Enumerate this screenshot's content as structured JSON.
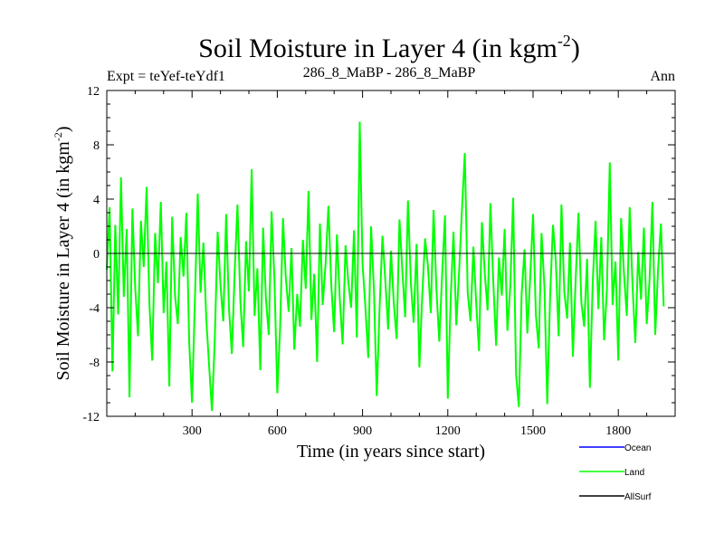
{
  "chart_data": {
    "type": "line",
    "title": "Soil Moisture in Layer 4 (in kgm",
    "title_sup": "-2",
    "title_close": ")",
    "subtitle_left": "Expt = teYef-teYdf1",
    "subtitle_center": "286_8_MaBP - 286_8_MaBP",
    "subtitle_right": "Ann",
    "xlabel": "Time (in years since start)",
    "ylabel": "Soil Moisture in Layer 4 (in kgm",
    "ylabel_sup": "-2",
    "ylabel_close": ")",
    "xlim": [
      0,
      2000
    ],
    "ylim": [
      -12,
      12
    ],
    "x_ticks": [
      300,
      600,
      900,
      1200,
      1500,
      1800
    ],
    "x_tick_labels": [
      "300",
      "600",
      "900",
      "1200",
      "1500",
      "1800"
    ],
    "y_ticks": [
      -12,
      -8,
      -4,
      0,
      4,
      8,
      12
    ],
    "y_tick_labels": [
      "-12",
      "-8",
      "-4",
      "0",
      "4",
      "8",
      "12"
    ],
    "reference_line": 0,
    "series": [
      {
        "name": "Ocean",
        "color": "#0000ff",
        "values": []
      },
      {
        "name": "Land",
        "color": "#00ff00",
        "sample_step": 10,
        "values": [
          -1.2,
          3.4,
          -8.7,
          2.1,
          -4.5,
          5.6,
          -3.2,
          1.8,
          -10.6,
          3.3,
          -2.5,
          -6.1,
          2.4,
          -1.0,
          4.9,
          -3.7,
          -7.9,
          1.5,
          -2.2,
          3.8,
          -4.4,
          -0.6,
          -9.8,
          2.7,
          -3.1,
          -5.2,
          1.2,
          -1.7,
          3.0,
          -6.6,
          -11.0,
          -3.6,
          4.4,
          -2.9,
          0.8,
          -4.8,
          -8.2,
          -11.6,
          -6.4,
          1.6,
          -2.3,
          -5.0,
          2.9,
          -4.0,
          -7.4,
          -1.4,
          3.6,
          -3.5,
          -6.9,
          0.9,
          -2.8,
          6.2,
          -4.6,
          -1.1,
          -8.6,
          1.9,
          -3.3,
          -6.0,
          3.1,
          -2.0,
          -10.3,
          -5.5,
          2.6,
          -1.8,
          -4.3,
          0.4,
          -7.1,
          -3.0,
          -5.4,
          1.0,
          -2.6,
          4.6,
          -4.9,
          -1.5,
          -8.0,
          2.2,
          -3.8,
          -0.7,
          3.5,
          -2.4,
          -5.8,
          1.4,
          -3.4,
          -6.7,
          0.6,
          -2.1,
          -4.0,
          1.7,
          -6.2,
          9.7,
          -0.8,
          -3.9,
          -7.7,
          2.0,
          -2.7,
          -10.5,
          -4.1,
          1.3,
          -1.9,
          -5.6,
          0.2,
          -3.6,
          -6.3,
          2.5,
          -1.3,
          -4.7,
          3.9,
          -2.2,
          -5.1,
          0.7,
          -8.4,
          -3.2,
          1.1,
          -0.9,
          -4.4,
          3.2,
          -2.6,
          -6.5,
          -1.6,
          2.8,
          -10.7,
          -3.5,
          1.6,
          -5.3,
          -1.2,
          3.3,
          7.4,
          -2.9,
          -5.0,
          0.5,
          -3.7,
          -7.2,
          2.3,
          -1.4,
          -4.2,
          3.7,
          -2.0,
          -6.8,
          -0.3,
          -3.1,
          1.8,
          -5.7,
          -2.4,
          4.1,
          -8.9,
          -11.3,
          -3.0,
          0.3,
          -5.9,
          -1.7,
          2.9,
          -4.5,
          -7.0,
          1.5,
          -2.5,
          -11.1,
          -3.3,
          2.1,
          -0.5,
          -6.1,
          3.6,
          -2.8,
          -4.8,
          0.8,
          -7.6,
          -1.9,
          3.0,
          -3.6,
          -5.4,
          -0.4,
          -9.9,
          -2.2,
          2.4,
          -4.1,
          1.2,
          -6.4,
          -2.7,
          6.7,
          -3.8,
          -0.6,
          -7.9,
          2.6,
          -1.5,
          -4.6,
          3.4,
          -2.3,
          -6.6,
          0.1,
          -3.4,
          1.9,
          -5.2,
          -2.0,
          3.8,
          -6.0,
          -1.1,
          2.2,
          -3.9
        ]
      },
      {
        "name": "AllSurf",
        "color": "#000000",
        "values": []
      }
    ],
    "legend_placement": "bottom-right"
  }
}
